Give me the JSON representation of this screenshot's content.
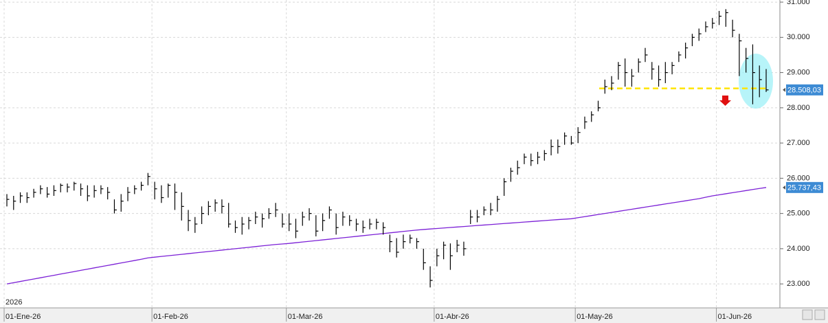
{
  "chart_data": {
    "type": "ohlc",
    "year_label": "2026",
    "categories": [
      "01-Ene-26",
      null,
      null,
      null,
      null,
      null,
      null,
      null,
      null,
      null,
      null,
      null,
      null,
      null,
      null,
      null,
      null,
      null,
      null,
      null,
      null,
      null,
      "01-Feb-26",
      null,
      null,
      null,
      null,
      null,
      null,
      null,
      null,
      null,
      null,
      null,
      null,
      null,
      null,
      null,
      null,
      null,
      null,
      null,
      "01-Mar-26",
      null,
      null,
      null,
      null,
      null,
      null,
      null,
      null,
      null,
      null,
      null,
      null,
      null,
      null,
      null,
      null,
      null,
      null,
      null,
      null,
      null,
      "01-Abr-26",
      null,
      null,
      null,
      null,
      null,
      null,
      null,
      null,
      null,
      null,
      null,
      null,
      null,
      null,
      null,
      null,
      null,
      null,
      null,
      null,
      "01-May-26",
      null,
      null,
      null,
      null,
      null,
      null,
      null,
      null,
      null,
      null,
      null,
      null,
      null,
      null,
      null,
      null,
      null,
      null,
      null,
      null,
      "01-Jun-26",
      null,
      null,
      null,
      null,
      null,
      null,
      null
    ],
    "ohlc": {
      "color": "#000000",
      "high": [
        25550,
        25500,
        25600,
        25600,
        25700,
        25800,
        25750,
        25800,
        25850,
        25850,
        25900,
        25850,
        25800,
        25800,
        25800,
        25750,
        25400,
        25550,
        25750,
        25800,
        25900,
        26150,
        25900,
        25800,
        25850,
        25850,
        25600,
        25100,
        24900,
        25200,
        25350,
        25400,
        25400,
        25300,
        24800,
        24900,
        24900,
        25050,
        25000,
        25150,
        25300,
        25000,
        25000,
        24850,
        25050,
        25150,
        24950,
        25000,
        25200,
        25000,
        25050,
        24950,
        24850,
        24800,
        24850,
        24850,
        24750,
        24400,
        24300,
        24400,
        24400,
        24300,
        24000,
        23500,
        24000,
        24200,
        24150,
        24250,
        24200,
        25100,
        25100,
        25200,
        25300,
        25500,
        26000,
        26300,
        26500,
        26700,
        26700,
        26750,
        26800,
        27100,
        27100,
        27300,
        27200,
        27450,
        27750,
        27900,
        28200,
        28800,
        28900,
        29300,
        29400,
        29100,
        29400,
        29700,
        29300,
        29200,
        29300,
        29300,
        29600,
        29850,
        30100,
        30250,
        30450,
        30550,
        30750,
        30800,
        30500,
        30100,
        29700,
        29800,
        29200,
        29100
      ],
      "low": [
        25200,
        25100,
        25300,
        25300,
        25450,
        25550,
        25450,
        25500,
        25600,
        25600,
        25650,
        25500,
        25350,
        25450,
        25550,
        25400,
        25000,
        25050,
        25350,
        25550,
        25650,
        25800,
        25400,
        25300,
        25450,
        25100,
        24800,
        24500,
        24450,
        24700,
        24950,
        25050,
        25000,
        24600,
        24450,
        24400,
        24550,
        24700,
        24600,
        24850,
        24900,
        24600,
        24500,
        24300,
        24650,
        24800,
        24350,
        24500,
        24850,
        24400,
        24650,
        24650,
        24500,
        24450,
        24550,
        24550,
        24400,
        23900,
        23750,
        24000,
        24150,
        24000,
        23400,
        22900,
        23500,
        23700,
        23400,
        23900,
        23800,
        24700,
        24750,
        24950,
        24950,
        25050,
        25500,
        25900,
        26100,
        26400,
        26350,
        26400,
        26500,
        26650,
        26700,
        26950,
        26950,
        27000,
        27400,
        27600,
        27900,
        28400,
        28500,
        28800,
        28600,
        28600,
        29000,
        29300,
        28800,
        28600,
        28700,
        28950,
        29300,
        29400,
        29750,
        29900,
        30150,
        30250,
        30350,
        30300,
        30000,
        28900,
        29000,
        28100,
        28300,
        28450
      ],
      "close": [
        25400,
        25350,
        25500,
        25450,
        25600,
        25700,
        25550,
        25650,
        25800,
        25750,
        25850,
        25700,
        25500,
        25650,
        25700,
        25600,
        25100,
        25350,
        25600,
        25700,
        25800,
        26050,
        25700,
        25450,
        25800,
        25600,
        25200,
        24800,
        24700,
        25000,
        25200,
        25300,
        25200,
        24700,
        24600,
        24700,
        24800,
        24900,
        24850,
        25000,
        25100,
        24700,
        24700,
        24500,
        24900,
        25000,
        24500,
        24800,
        25100,
        24600,
        24900,
        24800,
        24700,
        24600,
        24700,
        24750,
        24600,
        24200,
        23900,
        24200,
        24300,
        24200,
        23600,
        23100,
        23800,
        24100,
        23800,
        24100,
        24000,
        24900,
        24900,
        25100,
        25100,
        25400,
        25900,
        26200,
        26300,
        26600,
        26500,
        26600,
        26700,
        26900,
        26900,
        27200,
        27000,
        27300,
        27600,
        27800,
        28000,
        28600,
        28700,
        29200,
        29000,
        28900,
        29300,
        29500,
        29100,
        28800,
        29000,
        29200,
        29500,
        29700,
        30000,
        30100,
        30300,
        30400,
        30600,
        30700,
        30200,
        29900,
        29400,
        29000,
        28800,
        28508.03
      ],
      "last_label": {
        "value": 28508.03,
        "label": "28.508,03"
      }
    },
    "ma": {
      "color": "#7b1fd6",
      "values": [
        23000,
        23035,
        23070,
        23105,
        23140,
        23175,
        23210,
        23245,
        23280,
        23315,
        23350,
        23385,
        23420,
        23455,
        23490,
        23525,
        23560,
        23595,
        23630,
        23665,
        23700,
        23740,
        23760,
        23780,
        23800,
        23820,
        23840,
        23860,
        23880,
        23900,
        23920,
        23940,
        23960,
        23980,
        24000,
        24020,
        24040,
        24060,
        24080,
        24100,
        24120,
        24135,
        24150,
        24170,
        24190,
        24210,
        24230,
        24250,
        24270,
        24290,
        24310,
        24330,
        24350,
        24370,
        24390,
        24410,
        24430,
        24450,
        24470,
        24490,
        24510,
        24530,
        24545,
        24560,
        24574,
        24588,
        24602,
        24616,
        24630,
        24644,
        24658,
        24672,
        24686,
        24700,
        24714,
        24728,
        24742,
        24756,
        24770,
        24784,
        24798,
        24812,
        24826,
        24838,
        24850,
        24880,
        24910,
        24940,
        24970,
        25000,
        25030,
        25060,
        25090,
        25120,
        25150,
        25180,
        25210,
        25240,
        25270,
        25300,
        25330,
        25360,
        25390,
        25420,
        25460,
        25500,
        25530,
        25560,
        25590,
        25620,
        25650,
        25680,
        25710,
        25737.43
      ],
      "last_label": {
        "value": 25737.43,
        "label": "25.737,43"
      }
    },
    "support_line": {
      "value": 28550,
      "color": "#ffe400"
    },
    "ylim": [
      22320,
      31060
    ],
    "yticks": [
      {
        "value": 23000,
        "label": "23.000"
      },
      {
        "value": 24000,
        "label": "24.000"
      },
      {
        "value": 25000,
        "label": "25.000"
      },
      {
        "value": 26000,
        "label": "26.000"
      },
      {
        "value": 27000,
        "label": "27.000"
      },
      {
        "value": 28000,
        "label": "28.000"
      },
      {
        "value": 29000,
        "label": "29.000"
      },
      {
        "value": 30000,
        "label": "30.000"
      },
      {
        "value": 31000,
        "label": "31.000"
      }
    ],
    "grid": true
  }
}
